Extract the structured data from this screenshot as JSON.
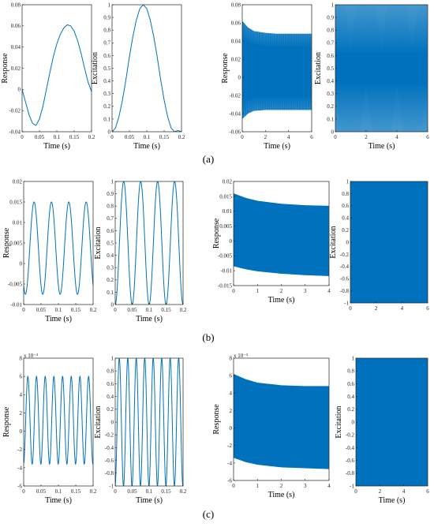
{
  "colors": {
    "signal": "#0072BD",
    "axis": "#222222"
  },
  "captions": [
    "(a)",
    "(b)",
    "(c)"
  ],
  "chart_data": [
    {
      "id": "a1",
      "row": 0,
      "type": "line",
      "xlabel": "Time (s)",
      "ylabel": "Response",
      "xlim": [
        0,
        0.2
      ],
      "ylim": [
        -0.04,
        0.08
      ],
      "xticks": [
        0,
        0.05,
        0.1,
        0.15,
        0.2
      ],
      "xtick_labels": [
        "0",
        "0.05",
        "0.1",
        "0.15",
        "0.2"
      ],
      "yticks": [
        -0.04,
        -0.02,
        0,
        0.02,
        0.04,
        0.06,
        0.08
      ],
      "ytick_labels": [
        "-0.04",
        "-0.02",
        "0",
        "0.02",
        "0.04",
        "0.06",
        "0.08"
      ],
      "series": [
        {
          "x": [
            0,
            0.01,
            0.02,
            0.03,
            0.04,
            0.05,
            0.06,
            0.07,
            0.08,
            0.09,
            0.1,
            0.11,
            0.12,
            0.13,
            0.14,
            0.15,
            0.16,
            0.17,
            0.18,
            0.19,
            0.2
          ],
          "values": [
            0,
            -0.012,
            -0.024,
            -0.032,
            -0.034,
            -0.028,
            -0.016,
            0.0,
            0.016,
            0.031,
            0.043,
            0.052,
            0.058,
            0.061,
            0.06,
            0.055,
            0.046,
            0.034,
            0.02,
            0.007,
            -0.002
          ]
        }
      ]
    },
    {
      "id": "a2",
      "row": 0,
      "type": "line",
      "xlabel": "Time (s)",
      "ylabel": "Excitation",
      "xlim": [
        0,
        0.2
      ],
      "ylim": [
        0,
        1
      ],
      "xticks": [
        0,
        0.05,
        0.1,
        0.15,
        0.2
      ],
      "xtick_labels": [
        "0",
        "0.05",
        "0.1",
        "0.15",
        "0.2"
      ],
      "yticks": [
        0,
        0.1,
        0.2,
        0.3,
        0.4,
        0.5,
        0.6,
        0.7,
        0.8,
        0.9,
        1
      ],
      "ytick_labels": [
        "0",
        "0.1",
        "0.2",
        "0.3",
        "0.4",
        "0.5",
        "0.6",
        "0.7",
        "0.8",
        "0.9",
        "1"
      ],
      "series": [
        {
          "x": [
            0,
            0.01,
            0.02,
            0.03,
            0.04,
            0.05,
            0.06,
            0.07,
            0.08,
            0.09,
            0.1,
            0.11,
            0.12,
            0.13,
            0.14,
            0.15,
            0.16,
            0.17,
            0.18,
            0.19,
            0.2
          ],
          "values": [
            0.0,
            0.03,
            0.12,
            0.25,
            0.41,
            0.59,
            0.75,
            0.88,
            0.97,
            1.0,
            0.97,
            0.88,
            0.75,
            0.59,
            0.41,
            0.25,
            0.12,
            0.03,
            0.0,
            0.01,
            0.0
          ]
        }
      ]
    },
    {
      "id": "a3",
      "row": 0,
      "type": "area",
      "band_type": "oscillation-envelope",
      "xlabel": "Time (s)",
      "ylabel": "Response",
      "xlim": [
        0,
        6
      ],
      "ylim": [
        -0.06,
        0.08
      ],
      "xticks": [
        0,
        2,
        4,
        6
      ],
      "xtick_labels": [
        "0",
        "2",
        "4",
        "6"
      ],
      "yticks": [
        -0.06,
        -0.04,
        -0.02,
        0,
        0.02,
        0.04,
        0.06,
        0.08
      ],
      "ytick_labels": [
        "-0.06",
        "-0.04",
        "-0.02",
        "0",
        "0.02",
        "0.04",
        "0.06",
        "0.08"
      ],
      "envelope": {
        "x": [
          0,
          0.5,
          1,
          2,
          3,
          4,
          5,
          6
        ],
        "upper": [
          0.062,
          0.055,
          0.051,
          0.049,
          0.048,
          0.048,
          0.048,
          0.048
        ],
        "lower": [
          -0.046,
          -0.04,
          -0.037,
          -0.036,
          -0.036,
          -0.036,
          -0.036,
          -0.036
        ]
      },
      "cycles": 120
    },
    {
      "id": "a4",
      "row": 0,
      "type": "area",
      "band_type": "oscillation-envelope",
      "xlabel": "Time (s)",
      "ylabel": "Excitation",
      "xlim": [
        0,
        6
      ],
      "ylim": [
        0,
        1
      ],
      "xticks": [
        0,
        2,
        4,
        6
      ],
      "xtick_labels": [
        "0",
        "2",
        "4",
        "6"
      ],
      "yticks": [
        0,
        0.1,
        0.2,
        0.3,
        0.4,
        0.5,
        0.6,
        0.7,
        0.8,
        0.9,
        1
      ],
      "ytick_labels": [
        "0",
        "0.1",
        "0.2",
        "0.3",
        "0.4",
        "0.5",
        "0.6",
        "0.7",
        "0.8",
        "0.9",
        "1"
      ],
      "envelope": {
        "x": [
          0,
          6
        ],
        "upper": [
          1,
          1
        ],
        "lower": [
          0,
          0
        ]
      },
      "cycles": 120
    },
    {
      "id": "b1",
      "row": 1,
      "type": "line",
      "xlabel": "Time (s)",
      "ylabel": "Response",
      "xlim": [
        0,
        0.2
      ],
      "ylim": [
        -0.01,
        0.02
      ],
      "xticks": [
        0,
        0.05,
        0.1,
        0.15,
        0.2
      ],
      "xtick_labels": [
        "0",
        "0.05",
        "0.1",
        "0.15",
        "0.2"
      ],
      "yticks": [
        -0.01,
        -0.005,
        0,
        0.005,
        0.01,
        0.015,
        0.02
      ],
      "ytick_labels": [
        "-0.01",
        "-0.005",
        "0",
        "0.005",
        "0.01",
        "0.015",
        "0.02"
      ],
      "wave": {
        "cycles": 4,
        "phase_x": 0.03,
        "max": 0.015,
        "min": -0.0075
      }
    },
    {
      "id": "b2",
      "row": 1,
      "type": "line",
      "xlabel": "Time (s)",
      "ylabel": "Excitation",
      "xlim": [
        0,
        0.2
      ],
      "ylim": [
        0,
        1
      ],
      "xticks": [
        0,
        0.05,
        0.1,
        0.15,
        0.2
      ],
      "xtick_labels": [
        "0",
        "0.05",
        "0.1",
        "0.15",
        "0.2"
      ],
      "yticks": [
        0,
        0.1,
        0.2,
        0.3,
        0.4,
        0.5,
        0.6,
        0.7,
        0.8,
        0.9,
        1
      ],
      "ytick_labels": [
        "0",
        "0.1",
        "0.2",
        "0.3",
        "0.4",
        "0.5",
        "0.6",
        "0.7",
        "0.8",
        "0.9",
        "1"
      ],
      "wave": {
        "cycles": 4,
        "phase_x": 0.025,
        "max": 1,
        "min": 0
      }
    },
    {
      "id": "b3",
      "row": 1,
      "type": "area",
      "band_type": "oscillation-envelope",
      "xlabel": "Time (s)",
      "ylabel": "Response",
      "xlim": [
        0,
        4
      ],
      "ylim": [
        -0.015,
        0.02
      ],
      "xticks": [
        0,
        1,
        2,
        3,
        4
      ],
      "xtick_labels": [
        "0",
        "1",
        "2",
        "3",
        "4"
      ],
      "yticks": [
        -0.015,
        -0.01,
        -0.005,
        0,
        0.005,
        0.01,
        0.015,
        0.02
      ],
      "ytick_labels": [
        "-0.015",
        "-0.01",
        "-0.005",
        "0",
        "0.005",
        "0.01",
        "0.015",
        "0.02"
      ],
      "envelope": {
        "x": [
          0,
          0.5,
          1,
          2,
          3,
          4
        ],
        "upper": [
          0.016,
          0.0145,
          0.0135,
          0.0125,
          0.012,
          0.0118
        ],
        "lower": [
          -0.0085,
          -0.0095,
          -0.0102,
          -0.011,
          -0.0115,
          -0.0118
        ]
      },
      "cycles": 200
    },
    {
      "id": "b4",
      "row": 1,
      "type": "area",
      "band_type": "oscillation-envelope",
      "xlabel": "",
      "ylabel": "Excitation",
      "xlim": [
        0,
        6
      ],
      "ylim": [
        -1,
        1
      ],
      "xticks": [
        0,
        2,
        4,
        6
      ],
      "xtick_labels": [
        "0",
        "2",
        "4",
        "6"
      ],
      "yticks": [
        -1,
        -0.8,
        -0.6,
        -0.4,
        -0.2,
        0,
        0.2,
        0.4,
        0.6,
        0.8,
        1
      ],
      "ytick_labels": [
        "-1",
        "-0.8",
        "-0.6",
        "-0.4",
        "-0.2",
        "0",
        "0.2",
        "0.4",
        "0.6",
        "0.8",
        "1"
      ],
      "envelope": {
        "x": [
          0,
          6
        ],
        "upper": [
          1,
          1
        ],
        "lower": [
          -1,
          -1
        ]
      },
      "cycles": 300
    },
    {
      "id": "c1",
      "row": 2,
      "type": "line",
      "xlabel": "Time (s)",
      "ylabel": "Response",
      "xlim": [
        0,
        0.2
      ],
      "ylim": [
        -6,
        8
      ],
      "yexp": "x 10⁻³",
      "xticks": [
        0,
        0.05,
        0.1,
        0.15,
        0.2
      ],
      "xtick_labels": [
        "0",
        "0.05",
        "0.1",
        "0.15",
        "0.2"
      ],
      "yticks": [
        -6,
        -4,
        -2,
        0,
        2,
        4,
        6,
        8
      ],
      "ytick_labels": [
        "-6",
        "-4",
        "-2",
        "0",
        "2",
        "4",
        "6",
        "8"
      ],
      "wave": {
        "cycles": 8,
        "phase_x": 0.012,
        "max": 6,
        "min": -3.6
      }
    },
    {
      "id": "c2",
      "row": 2,
      "type": "line",
      "xlabel": "Time (s)",
      "ylabel": "Excitation",
      "xlim": [
        0,
        0.2
      ],
      "ylim": [
        -1,
        1
      ],
      "xticks": [
        0,
        0.05,
        0.1,
        0.15,
        0.2
      ],
      "xtick_labels": [
        "0",
        "0.05",
        "0.1",
        "0.15",
        "0.2"
      ],
      "yticks": [
        -1,
        -0.8,
        -0.6,
        -0.4,
        -0.2,
        0,
        0.2,
        0.4,
        0.6,
        0.8,
        1
      ],
      "ytick_labels": [
        "-1",
        "-0.8",
        "-0.6",
        "-0.4",
        "-0.2",
        "0",
        "0.2",
        "0.4",
        "0.6",
        "0.8",
        "1"
      ],
      "wave": {
        "cycles": 8,
        "phase_x": 0.012,
        "max": 1,
        "min": -1
      }
    },
    {
      "id": "c3",
      "row": 2,
      "type": "area",
      "band_type": "oscillation-envelope",
      "xlabel": "Time (s)",
      "ylabel": "Response",
      "xlim": [
        0,
        4
      ],
      "ylim": [
        -6,
        8
      ],
      "yexp": "x 10⁻³",
      "xticks": [
        0,
        1,
        2,
        3,
        4
      ],
      "xtick_labels": [
        "0",
        "1",
        "2",
        "3",
        "4"
      ],
      "yticks": [
        -6,
        -4,
        -2,
        0,
        2,
        4,
        6,
        8
      ],
      "ytick_labels": [
        "-6",
        "-4",
        "-2",
        "0",
        "2",
        "4",
        "6",
        "8"
      ],
      "envelope": {
        "x": [
          0,
          0.5,
          1,
          2,
          3,
          4
        ],
        "upper": [
          6.2,
          5.6,
          5.2,
          4.9,
          4.8,
          4.8
        ],
        "lower": [
          -3.4,
          -3.9,
          -4.2,
          -4.5,
          -4.6,
          -4.7
        ]
      },
      "cycles": 0
    },
    {
      "id": "c4",
      "row": 2,
      "type": "area",
      "band_type": "oscillation-envelope",
      "xlabel": "Time (s)",
      "ylabel": "Excitation",
      "xlim": [
        0,
        6
      ],
      "ylim": [
        -1,
        1
      ],
      "xticks": [
        0,
        2,
        4,
        6
      ],
      "xtick_labels": [
        "0",
        "2",
        "4",
        "6"
      ],
      "yticks": [
        -1,
        -0.8,
        -0.6,
        -0.4,
        -0.2,
        0,
        0.2,
        0.4,
        0.6,
        0.8,
        1
      ],
      "ytick_labels": [
        "-1",
        "-0.8",
        "-0.6",
        "-0.4",
        "-0.2",
        "0",
        "0.2",
        "0.4",
        "0.6",
        "0.8",
        "1"
      ],
      "envelope": {
        "x": [
          0,
          6
        ],
        "upper": [
          1,
          1
        ],
        "lower": [
          -1,
          -1
        ]
      },
      "cycles": 0
    }
  ]
}
